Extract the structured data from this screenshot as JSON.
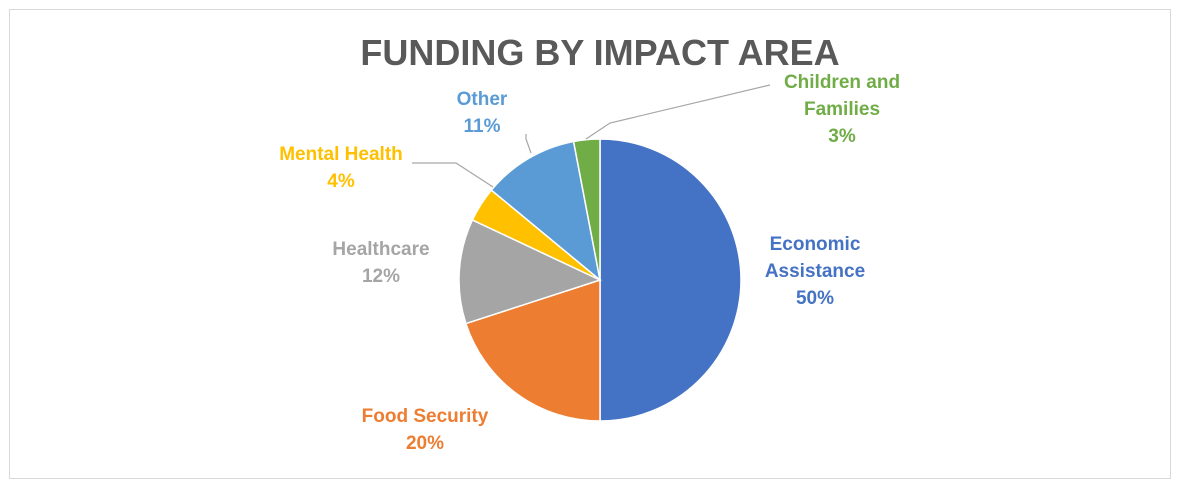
{
  "chart_data": {
    "type": "pie",
    "title": "FUNDING BY IMPACT AREA",
    "slices": [
      {
        "name": "Economic Assistance",
        "value": 50,
        "percent_label": "50%",
        "color": "#4472C4",
        "label_lines": [
          "Economic",
          "Assistance"
        ]
      },
      {
        "name": "Food Security",
        "value": 20,
        "percent_label": "20%",
        "color": "#ED7D31",
        "label_lines": [
          "Food Security"
        ]
      },
      {
        "name": "Healthcare",
        "value": 12,
        "percent_label": "12%",
        "color": "#A5A5A5",
        "label_lines": [
          "Healthcare"
        ]
      },
      {
        "name": "Mental Health",
        "value": 4,
        "percent_label": "4%",
        "color": "#FFC000",
        "label_lines": [
          "Mental Health"
        ]
      },
      {
        "name": "Other",
        "value": 11,
        "percent_label": "11%",
        "color": "#5B9BD5",
        "label_lines": [
          "Other"
        ]
      },
      {
        "name": "Children and Families",
        "value": 3,
        "percent_label": "3%",
        "color": "#70AD47",
        "label_lines": [
          "Children and",
          "Families"
        ]
      }
    ],
    "legend": "none",
    "data_labels": "outside with leader lines"
  }
}
